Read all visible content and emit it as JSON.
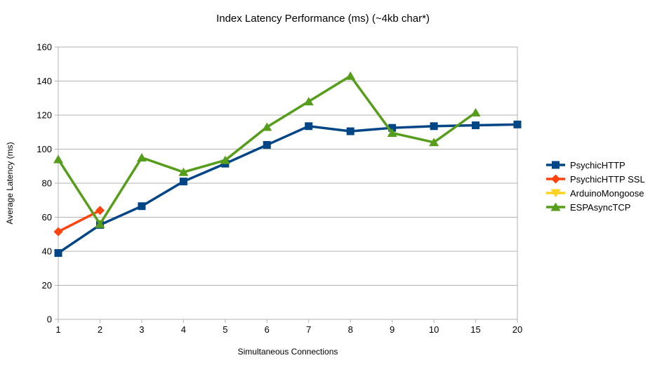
{
  "chart_data": {
    "type": "line",
    "title": "Index Latency Performance (ms) (~4kb char*)",
    "xlabel": "Simultaneous Connections",
    "ylabel": "Average Latency (ms)",
    "categories": [
      "1",
      "2",
      "3",
      "4",
      "5",
      "6",
      "7",
      "8",
      "9",
      "10",
      "15",
      "20"
    ],
    "ylim": [
      0,
      160
    ],
    "ytick_step": 20,
    "grid": "horizontal",
    "legend_position": "right",
    "grid_color": "#b3b3b3",
    "axis_color": "#b3b3b3",
    "series": [
      {
        "name": "PsychicHTTP",
        "color": "#004586",
        "marker": "square",
        "values": [
          39,
          55.5,
          66.5,
          81,
          91.5,
          102.5,
          113.5,
          110.5,
          112.5,
          113.5,
          114,
          114.5
        ]
      },
      {
        "name": "PsychicHTTP SSL",
        "color": "#FF420E",
        "marker": "diamond",
        "values": [
          51.5,
          64,
          null,
          null,
          null,
          null,
          null,
          null,
          null,
          null,
          null,
          null
        ]
      },
      {
        "name": "ArduinoMongoose",
        "color": "#FFD320",
        "marker": "triangle-down",
        "values": [
          null,
          null,
          null,
          null,
          null,
          null,
          null,
          null,
          null,
          null,
          null,
          null
        ]
      },
      {
        "name": "ESPAsyncTCP",
        "color": "#579D1C",
        "marker": "triangle-up",
        "values": [
          94,
          56,
          95,
          86.5,
          93.5,
          113,
          128,
          143,
          109.5,
          104,
          121.5,
          null
        ]
      }
    ]
  }
}
